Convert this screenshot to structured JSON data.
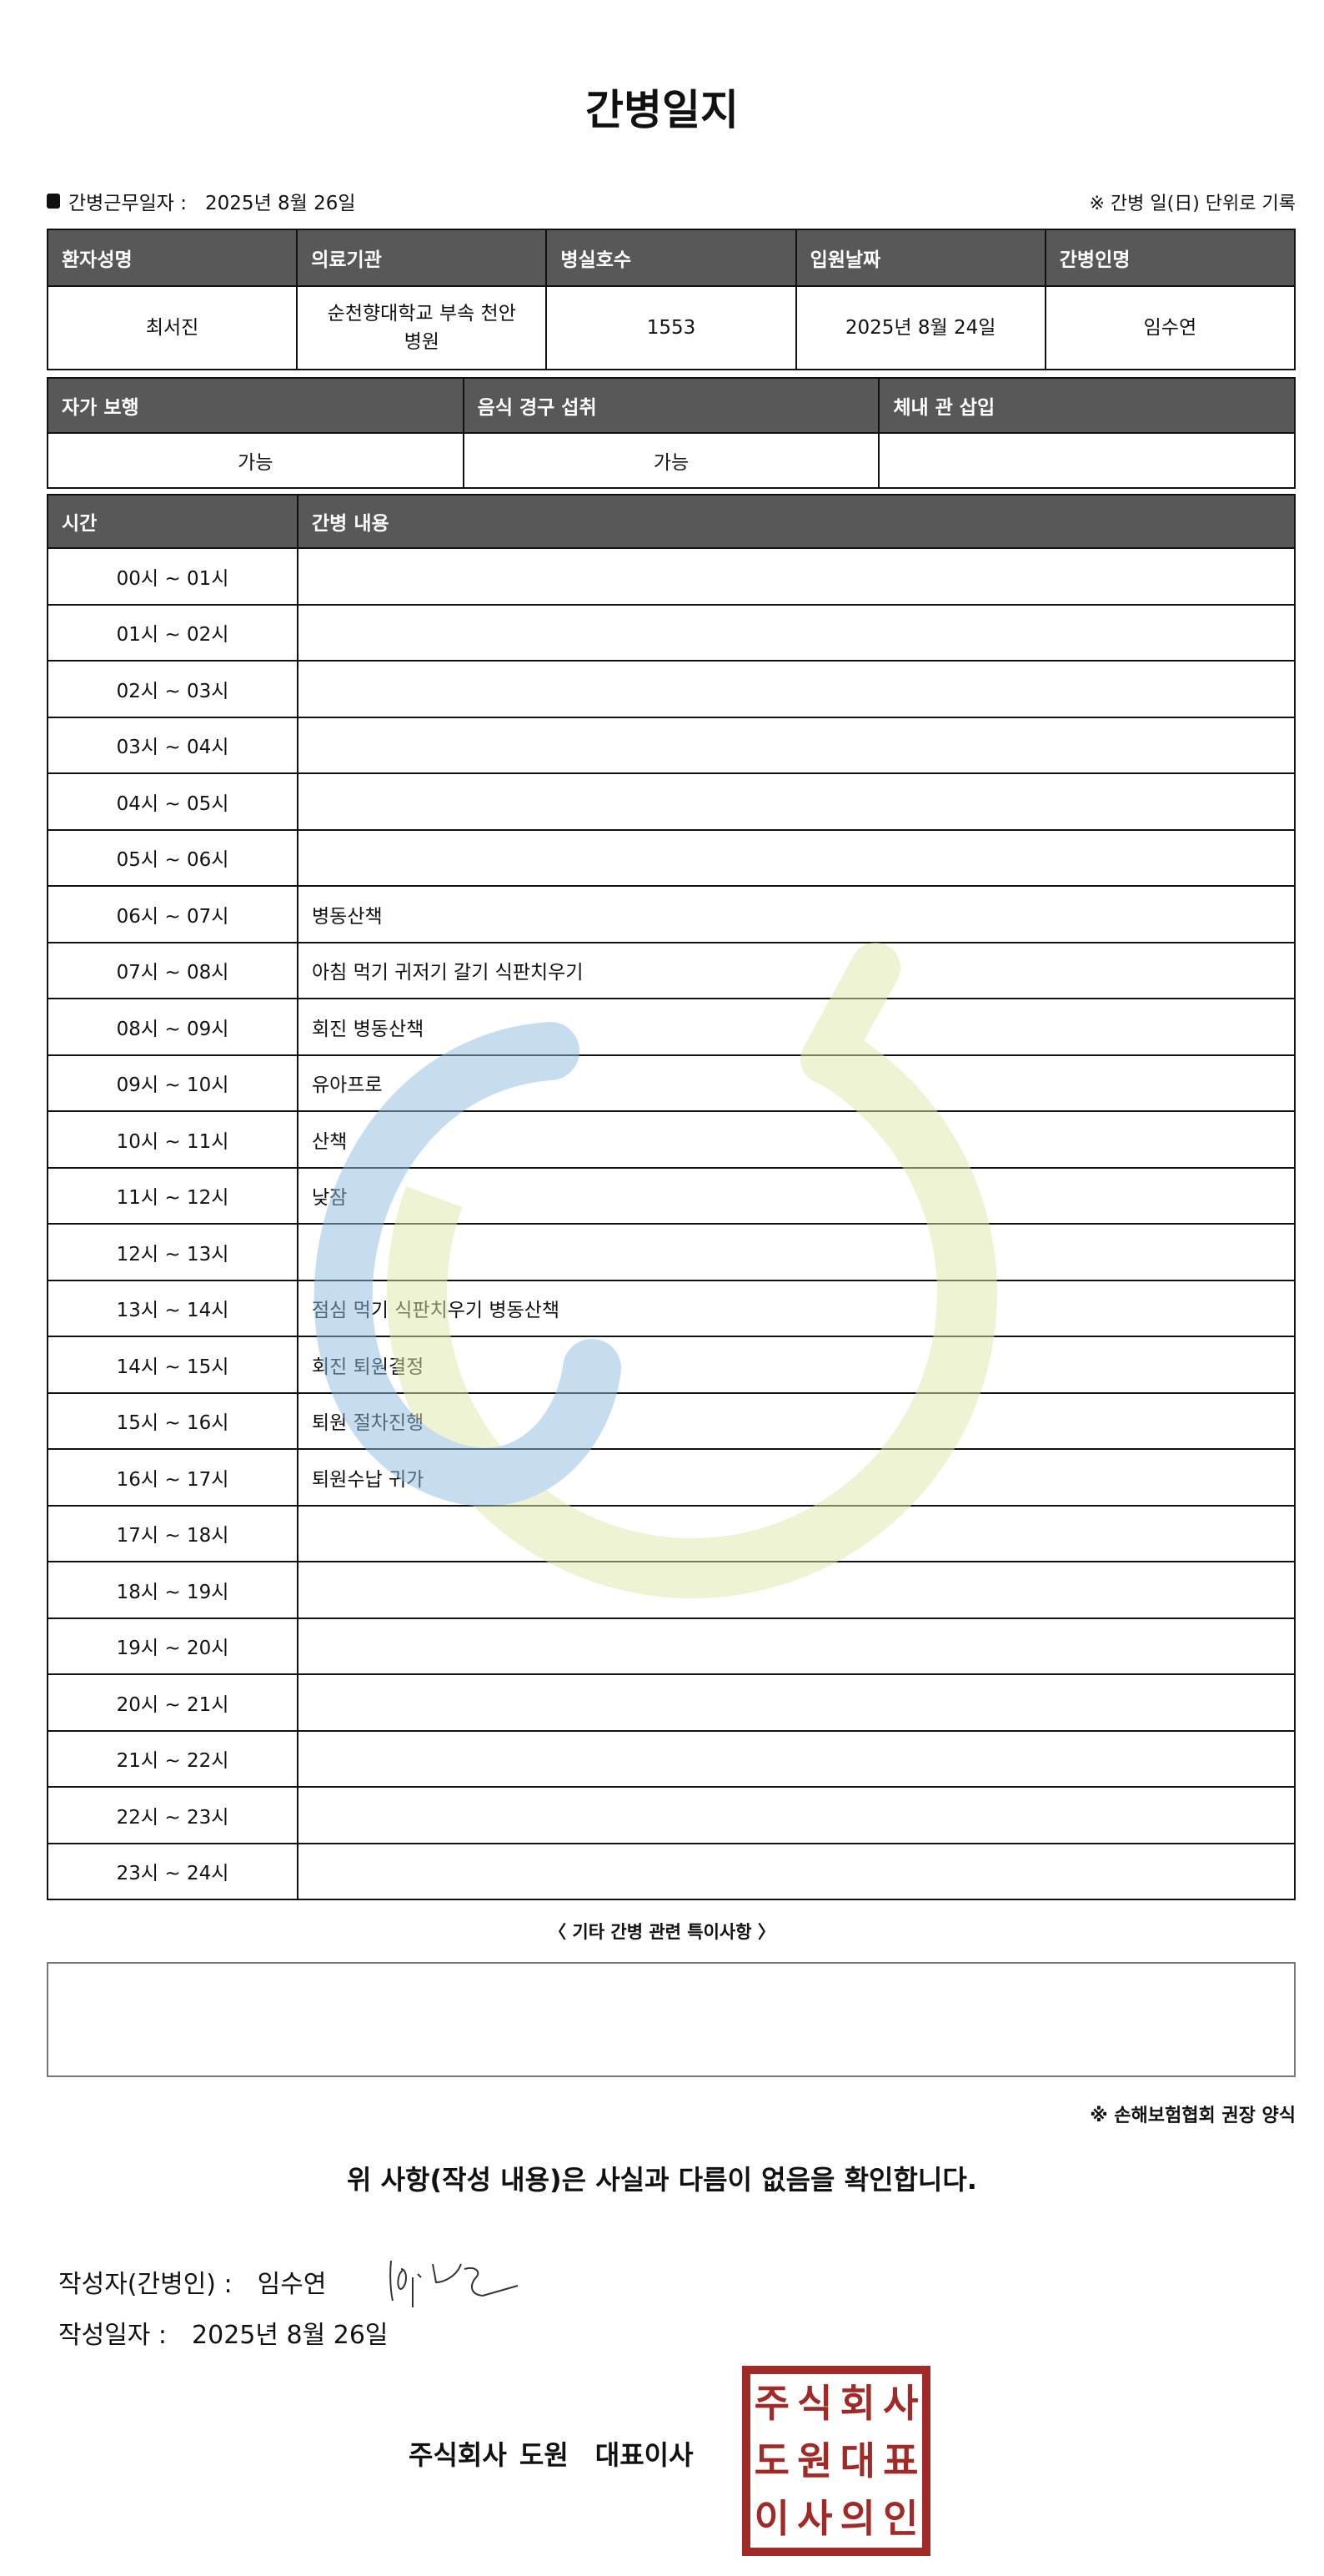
{
  "title": "간병일지",
  "work_date_label": "간병근무일자 :",
  "work_date": "2025년 8월 26일",
  "unit_note": "※ 간병 일(日) 단위로 기록",
  "info_headers": [
    "환자성명",
    "의료기관",
    "병실호수",
    "입원날짜",
    "간병인명"
  ],
  "info_values": [
    "최서진",
    "순천향대학교 부속 천안 병원",
    "1553",
    "2025년 8월 24일",
    "임수연"
  ],
  "status_headers": [
    "자가 보행",
    "음식 경구 섭취",
    "체내 관 삽입"
  ],
  "status_values": [
    "가능",
    "가능",
    ""
  ],
  "log_headers": [
    "시간",
    "간병 내용"
  ],
  "log": [
    {
      "time": "00시 ~ 01시",
      "content": ""
    },
    {
      "time": "01시 ~ 02시",
      "content": ""
    },
    {
      "time": "02시 ~ 03시",
      "content": ""
    },
    {
      "time": "03시 ~ 04시",
      "content": ""
    },
    {
      "time": "04시 ~ 05시",
      "content": ""
    },
    {
      "time": "05시 ~ 06시",
      "content": ""
    },
    {
      "time": "06시 ~ 07시",
      "content": "병동산책"
    },
    {
      "time": "07시 ~ 08시",
      "content": "아침 먹기 귀저기 갈기 식판치우기"
    },
    {
      "time": "08시 ~ 09시",
      "content": "회진 병동산책"
    },
    {
      "time": "09시 ~ 10시",
      "content": "유아프로"
    },
    {
      "time": "10시 ~ 11시",
      "content": "산책"
    },
    {
      "time": "11시 ~ 12시",
      "content": "낮잠"
    },
    {
      "time": "12시 ~ 13시",
      "content": ""
    },
    {
      "time": "13시 ~ 14시",
      "content": "점심 먹기 식판치우기 병동산책"
    },
    {
      "time": "14시 ~ 15시",
      "content": "회진 퇴원결정"
    },
    {
      "time": "15시 ~ 16시",
      "content": "퇴원 절차진행"
    },
    {
      "time": "16시 ~ 17시",
      "content": "퇴원수납 귀가"
    },
    {
      "time": "17시 ~ 18시",
      "content": ""
    },
    {
      "time": "18시 ~ 19시",
      "content": ""
    },
    {
      "time": "19시 ~ 20시",
      "content": ""
    },
    {
      "time": "20시 ~ 21시",
      "content": ""
    },
    {
      "time": "21시 ~ 22시",
      "content": ""
    },
    {
      "time": "22시 ~ 23시",
      "content": ""
    },
    {
      "time": "23시 ~ 24시",
      "content": ""
    }
  ],
  "etc_label": "〈 기타 간병 관련 특이사항 〉",
  "etc_value": "",
  "assoc_note": "※ 손해보험협회 권장 양식",
  "confirm": "위 사항(작성 내용)은 사실과 다름이 없음을 확인합니다.",
  "writer_label": "작성자(간병인) :",
  "writer_name": "임수연",
  "write_date_label": "작성일자 :",
  "write_date": "2025년 8월 26일",
  "company": "주식회사 도원　대표이사",
  "stamp_text": "주식회사도원대표이사의인",
  "colors": {
    "header_bg": "#585858",
    "stamp": "#a02a28",
    "watermark_blue": "#8dbde0",
    "watermark_green": "#dfe8a8"
  }
}
